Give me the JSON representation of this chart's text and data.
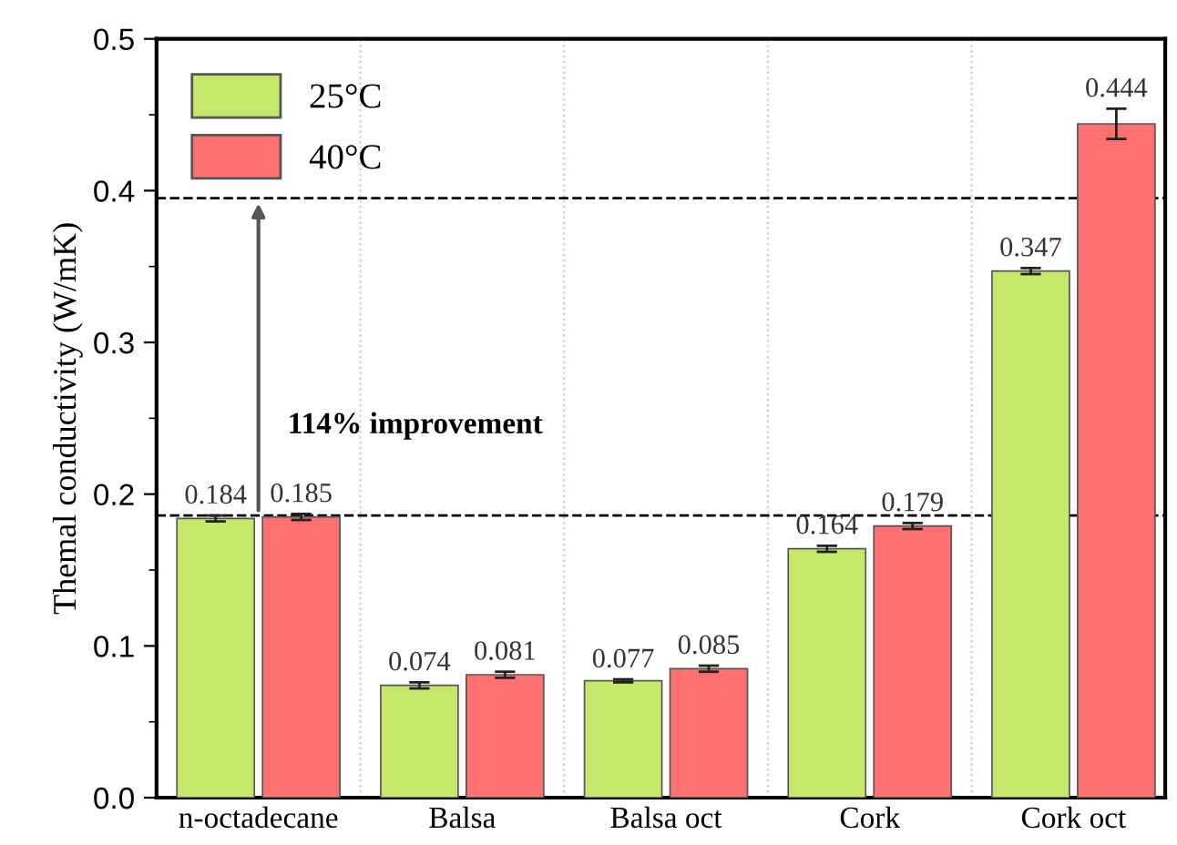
{
  "chart_data": {
    "type": "bar",
    "ylabel": "Themal conductivity (W/mK)",
    "categories": [
      "n-octadecane",
      "Balsa",
      "Balsa oct",
      "Cork",
      "Cork oct"
    ],
    "series": [
      {
        "name": "25°C",
        "color": "#c6e86a",
        "values": [
          0.184,
          0.074,
          0.077,
          0.164,
          0.347
        ],
        "errors": [
          0.002,
          0.002,
          0.001,
          0.002,
          0.002
        ]
      },
      {
        "name": "40°C",
        "color": "#ff7070",
        "values": [
          0.185,
          0.081,
          0.085,
          0.179,
          0.444
        ],
        "errors": [
          0.002,
          0.002,
          0.002,
          0.002,
          0.01
        ]
      }
    ],
    "ylim": [
      0,
      0.5
    ],
    "yticks": [
      {
        "value": 0,
        "label": "0.0"
      },
      0.1,
      0.2,
      0.3,
      0.4,
      0.5
    ],
    "ref_lines": [
      {
        "axis": "y",
        "value": 0.186,
        "color": "#000000",
        "line_style": "dashed"
      },
      {
        "axis": "y",
        "value": 0.395,
        "color": "#000000",
        "line_style": "dashed"
      }
    ],
    "annotations": [
      "114% improvement"
    ],
    "data_labels": true,
    "grid": "x",
    "legend": "top left"
  }
}
